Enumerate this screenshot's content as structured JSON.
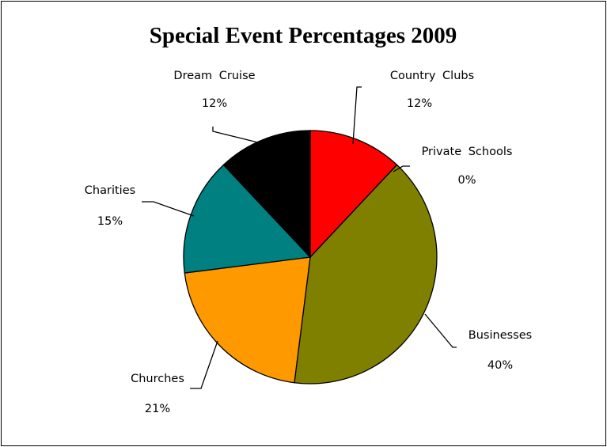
{
  "chart_data": {
    "type": "pie",
    "title": "Special Event Percentages 2009",
    "slices": [
      {
        "label": "Country Clubs",
        "value": 12,
        "display": "12%",
        "color": "#ff0000"
      },
      {
        "label": "Private Schools",
        "value": 0,
        "display": "0%",
        "color": "#ffffff"
      },
      {
        "label": "Businesses",
        "value": 40,
        "display": "40%",
        "color": "#808000"
      },
      {
        "label": "Churches",
        "value": 21,
        "display": "21%",
        "color": "#ff9900"
      },
      {
        "label": "Charities",
        "value": 15,
        "display": "15%",
        "color": "#008080"
      },
      {
        "label": "Dream Cruise",
        "value": 12,
        "display": "12%",
        "color": "#000000"
      }
    ],
    "start": "12 o'clock",
    "direction": "clockwise",
    "legend": "none",
    "data_labels": "outside with leader lines"
  }
}
